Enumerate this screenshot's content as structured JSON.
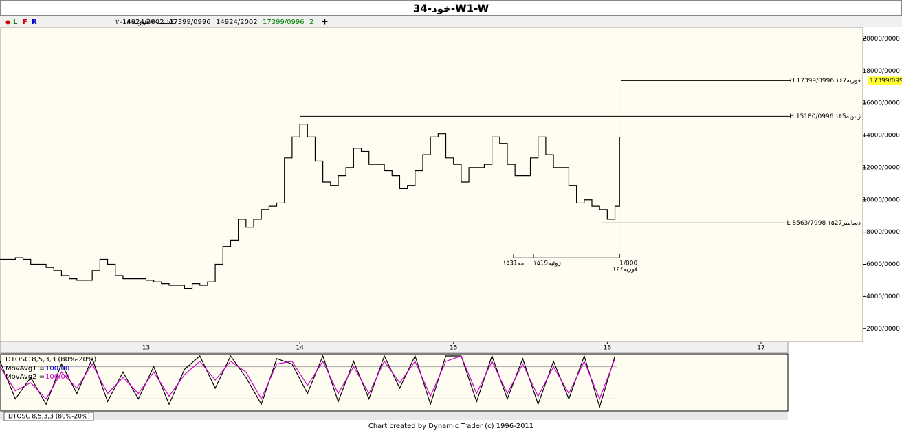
{
  "header": {
    "title": "34-خود-W1-W",
    "marker": "●",
    "buttons": [
      "L",
      "F",
      "R"
    ],
    "date": "یکشنبه ۷-فوریه-۲۰۱۶",
    "quotes": [
      "14924/2002",
      "17399/0996",
      "14924/2002",
      "17399/0996",
      "2"
    ],
    "add": "+"
  },
  "chart_data": [
    {
      "type": "line",
      "color": "#000000",
      "x": [
        12.05,
        12.1,
        12.15,
        12.2,
        12.25,
        12.3,
        12.35,
        12.4,
        12.45,
        12.5,
        12.55,
        12.6,
        12.65,
        12.7,
        12.75,
        12.8,
        12.85,
        12.9,
        12.95,
        13.0,
        13.05,
        13.1,
        13.15,
        13.2,
        13.25,
        13.3,
        13.35,
        13.4,
        13.45,
        13.5,
        13.55,
        13.6,
        13.65,
        13.7,
        13.75,
        13.8,
        13.85,
        13.9,
        13.95,
        14.0,
        14.05,
        14.1,
        14.15,
        14.2,
        14.25,
        14.3,
        14.35,
        14.4,
        14.45,
        14.5,
        14.55,
        14.6,
        14.65,
        14.7,
        14.75,
        14.8,
        14.85,
        14.9,
        14.95,
        15.0,
        15.05,
        15.1,
        15.15,
        15.2,
        15.25,
        15.3,
        15.35,
        15.4,
        15.45,
        15.5,
        15.55,
        15.6,
        15.65,
        15.7,
        15.75,
        15.8,
        15.85,
        15.9,
        15.95,
        16.0,
        16.05,
        16.08
      ],
      "values": [
        6300,
        6300,
        6400,
        6300,
        6000,
        6000,
        5800,
        5600,
        5300,
        5100,
        5000,
        5000,
        5600,
        6300,
        6000,
        5300,
        5100,
        5100,
        5100,
        5000,
        4900,
        4800,
        4700,
        4700,
        4500,
        4800,
        4700,
        4900,
        6000,
        7100,
        7500,
        8800,
        8300,
        8800,
        9400,
        9600,
        9800,
        12600,
        13900,
        14700,
        13900,
        12400,
        11100,
        10900,
        11500,
        12000,
        13200,
        13000,
        12200,
        12200,
        11800,
        11500,
        10700,
        10900,
        11800,
        12800,
        13900,
        14100,
        12600,
        12200,
        11100,
        12000,
        12000,
        12200,
        13900,
        13500,
        12200,
        11500,
        11500,
        12600,
        13900,
        12800,
        12000,
        12000,
        10900,
        9800,
        10000,
        9600,
        9400,
        8800,
        9600,
        13900
      ],
      "xlim": [
        12.05,
        17.17
      ],
      "ylim": [
        1200,
        20700
      ],
      "xticks": [
        13,
        14,
        15,
        16,
        17
      ],
      "yticks": [
        {
          "value": 20000,
          "label": "20000/0000"
        },
        {
          "value": 18000,
          "label": "18000/0000"
        },
        {
          "value": 16000,
          "label": "16000/0000"
        },
        {
          "value": 14000,
          "label": "14000/0000"
        },
        {
          "value": 12000,
          "label": "12000/0000"
        },
        {
          "value": 10000,
          "label": "10000/0000"
        },
        {
          "value": 8000,
          "label": "8000/0000"
        },
        {
          "value": 6000,
          "label": "6000/0000"
        },
        {
          "value": 4000,
          "label": "4000/0000"
        },
        {
          "value": 2000,
          "label": "2000/0000"
        }
      ],
      "levels": [
        {
          "value": 17399.0996,
          "x": 16.09,
          "label": "H 17399/0996 ۱۶فوریه7"
        },
        {
          "value": 15180.0996,
          "x": 14.0,
          "label": "H 15180/0996 ۱۴ژانویه5"
        },
        {
          "value": 8563.7998,
          "x": 15.96,
          "label": "L 8563/7998 ۱۵دسامبر27"
        }
      ],
      "current": {
        "value": 17399.0996,
        "label": "17399/099"
      },
      "cursor_x": 16.09,
      "time_markers": [
        {
          "x": 15.39,
          "label": "۱۵مه31"
        },
        {
          "x": 15.52,
          "label": "۱۵ژوئیه19"
        },
        {
          "x": 16.08,
          "label": "1/000",
          "sublabel": "۱۶فوریه7"
        }
      ]
    },
    {
      "type": "line",
      "title": "DTOSC 8,5,3,3 (80%-20%)",
      "ylim": [
        0,
        100
      ],
      "levels": [
        20,
        80
      ],
      "x": [
        12.05,
        12.15,
        12.25,
        12.35,
        12.45,
        12.55,
        12.65,
        12.75,
        12.85,
        12.95,
        13.05,
        13.15,
        13.25,
        13.35,
        13.45,
        13.55,
        13.65,
        13.75,
        13.85,
        13.95,
        14.05,
        14.15,
        14.25,
        14.35,
        14.45,
        14.55,
        14.65,
        14.75,
        14.85,
        14.95,
        15.05,
        15.15,
        15.25,
        15.35,
        15.45,
        15.55,
        15.65,
        15.75,
        15.85,
        15.95,
        16.05
      ],
      "series": [
        {
          "name": "MovAvg1 =",
          "value_label": "100/00",
          "label_color": "#0000cc",
          "color": "#000000",
          "values": [
            90,
            20,
            60,
            10,
            85,
            30,
            95,
            15,
            70,
            20,
            80,
            10,
            75,
            100,
            40,
            100,
            60,
            10,
            95,
            85,
            30,
            100,
            15,
            90,
            20,
            100,
            40,
            100,
            10,
            100,
            100,
            15,
            100,
            20,
            95,
            10,
            90,
            20,
            100,
            5,
            100
          ]
        },
        {
          "name": "MovAvg2 =",
          "value_label": "100/00",
          "label_color": "#cc00cc",
          "color": "#cc00cc",
          "values": [
            80,
            35,
            50,
            20,
            70,
            40,
            85,
            30,
            60,
            30,
            70,
            25,
            65,
            90,
            55,
            90,
            70,
            20,
            85,
            90,
            45,
            90,
            30,
            80,
            30,
            90,
            50,
            90,
            25,
            90,
            100,
            30,
            90,
            30,
            85,
            25,
            80,
            30,
            90,
            20,
            95
          ]
        }
      ]
    }
  ],
  "tab": "DTOSC 8,5,3,3 (80%-20%)",
  "footer": "Chart created by Dynamic Trader  (c) 1996-2011"
}
